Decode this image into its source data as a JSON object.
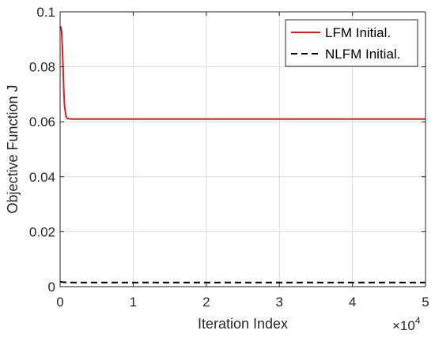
{
  "chart_data": {
    "type": "line",
    "title": "",
    "xlabel": "Iteration Index",
    "ylabel": "Objective Function J",
    "x_exponent_base": "×10",
    "x_exponent_power": "4",
    "xlim": [
      0,
      5
    ],
    "ylim": [
      0,
      0.1
    ],
    "x_ticks": [
      "0",
      "1",
      "2",
      "3",
      "4",
      "5"
    ],
    "y_ticks": [
      "0",
      "0.02",
      "0.04",
      "0.06",
      "0.08",
      "0.1"
    ],
    "grid": true,
    "legend_position": "top-right",
    "series": [
      {
        "name": "LFM Initial.",
        "color": "#e41a1c",
        "style": "solid",
        "x": [
          0,
          0.01,
          0.02,
          0.03,
          0.04,
          0.05,
          0.06,
          0.08,
          0.1,
          0.15,
          0.2,
          1,
          2,
          3,
          4,
          5
        ],
        "y": [
          0.094,
          0.0945,
          0.093,
          0.088,
          0.08,
          0.072,
          0.066,
          0.062,
          0.0612,
          0.061,
          0.061,
          0.061,
          0.061,
          0.061,
          0.061,
          0.061
        ]
      },
      {
        "name": "NLFM Initial.",
        "color": "#000000",
        "style": "dashed",
        "x": [
          0,
          0.05,
          0.1,
          1,
          2,
          3,
          4,
          5
        ],
        "y": [
          0.0018,
          0.0016,
          0.0015,
          0.0015,
          0.0015,
          0.0015,
          0.0015,
          0.0015
        ]
      }
    ]
  }
}
